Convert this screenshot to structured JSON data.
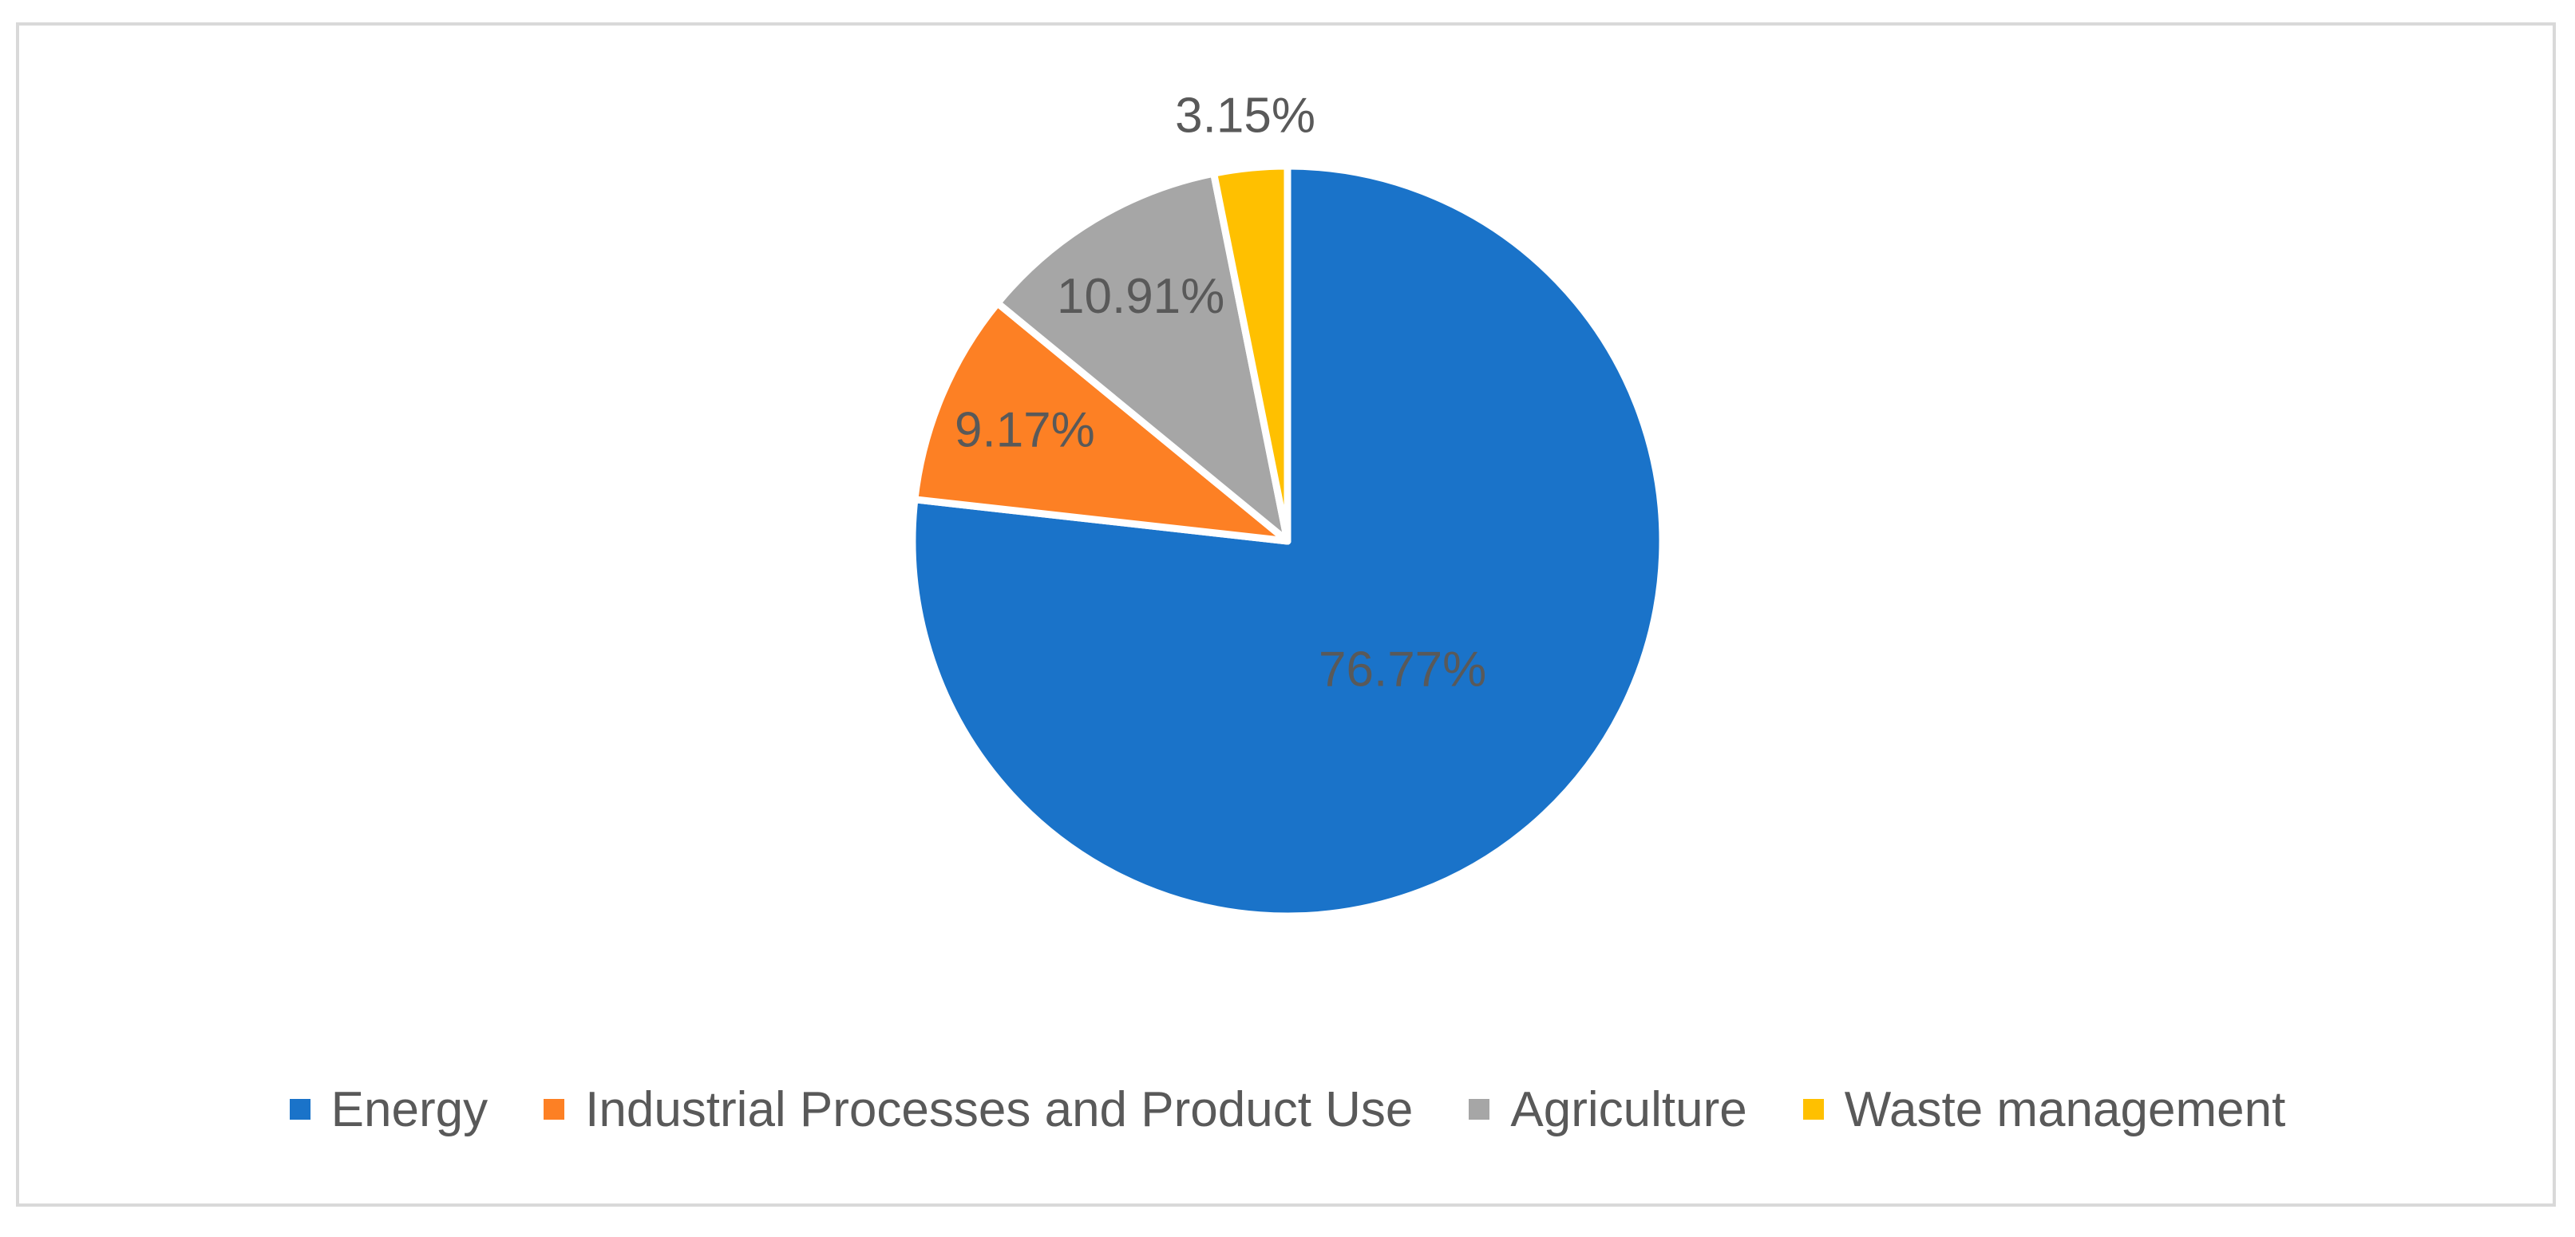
{
  "chart_data": {
    "type": "pie",
    "title": "",
    "categories": [
      "Energy",
      "Industrial Processes and Product Use",
      "Agriculture",
      "Waste management"
    ],
    "values": [
      76.77,
      9.17,
      10.91,
      3.15
    ],
    "labels": [
      "76.77%",
      "9.17%",
      "10.91%",
      "3.15%"
    ],
    "colors": [
      "#1a73c9",
      "#fd8024",
      "#a6a6a6",
      "#ffc000"
    ],
    "start_angle_deg": 0,
    "direction": "clockwise",
    "legend_position": "bottom"
  }
}
